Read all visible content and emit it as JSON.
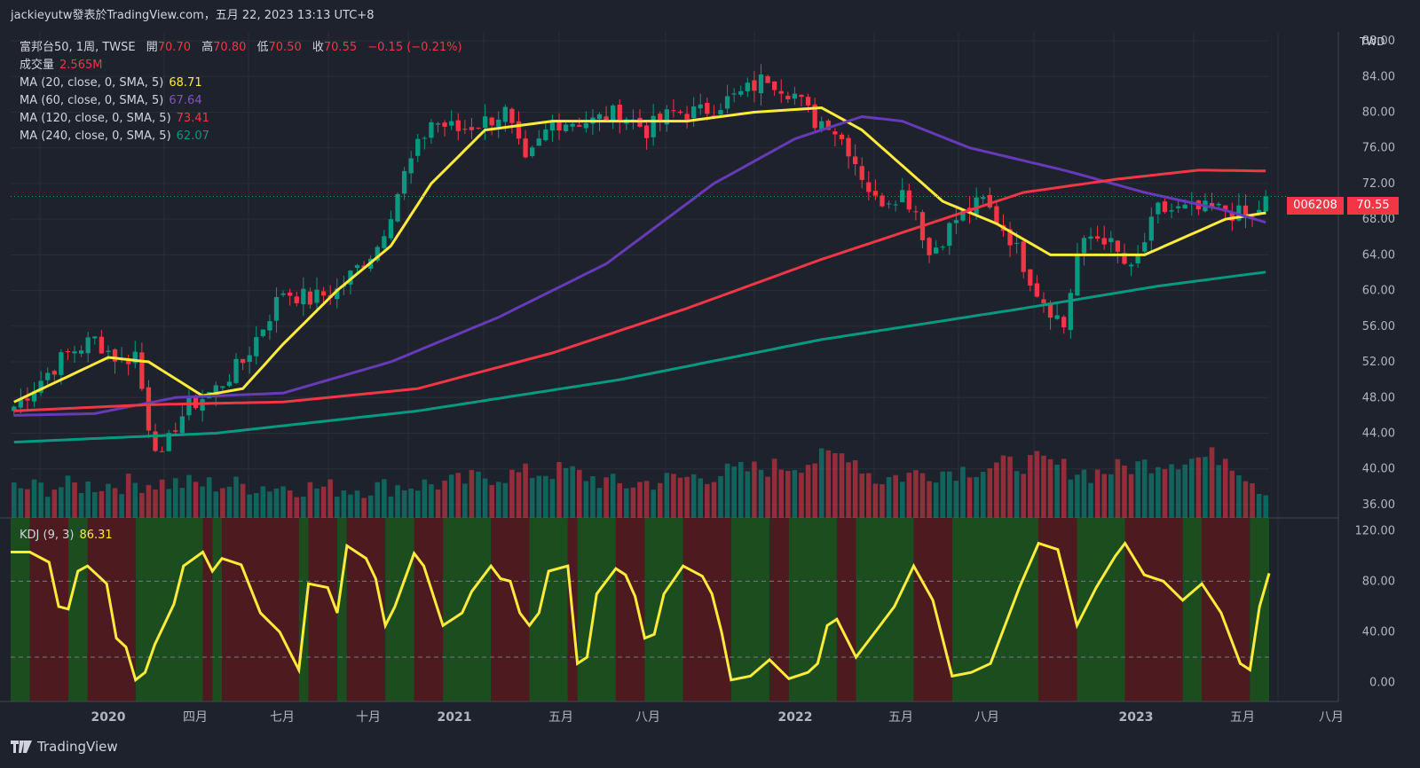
{
  "header": {
    "publish_text": "jackieyutw發表於TradingView.com，五月 22, 2023 13:13 UTC+8"
  },
  "legend": {
    "symbol_line": "富邦台50, 1周, TWSE",
    "ohlc": [
      {
        "label": "開",
        "value": "70.70"
      },
      {
        "label": "高",
        "value": "70.80"
      },
      {
        "label": "低",
        "value": "70.50"
      },
      {
        "label": "收",
        "value": "70.55"
      }
    ],
    "change": "−0.15 (−0.21%)",
    "volume_label": "成交量",
    "volume_value": "2.565M",
    "ma": [
      {
        "label": "MA (20, close, 0, SMA, 5)",
        "value": "68.71",
        "color": "#ffeb3b"
      },
      {
        "label": "MA (60, close, 0, SMA, 5)",
        "value": "67.64",
        "color": "#673ab7"
      },
      {
        "label": "MA (120, close, 0, SMA, 5)",
        "value": "73.41",
        "color": "#f23645"
      },
      {
        "label": "MA (240, close, 0, SMA, 5)",
        "value": "62.07",
        "color": "#089981"
      }
    ],
    "kdj_label": "KDJ (9, 3)",
    "kdj_value": "86.31"
  },
  "axis": {
    "unit": "TWD",
    "ticker_tag": "006208",
    "last_price_tag": "70.55"
  },
  "footer": {
    "brand": "TradingView"
  },
  "colors": {
    "up": "#089981",
    "down": "#f23645",
    "background": "#1e222d",
    "kdj_line": "#ffeb3b",
    "kdj_green_bg": "#1b4d1f",
    "kdj_red_bg": "#4d1a1f"
  },
  "chart_data": {
    "type": "candlestick",
    "price_axis": {
      "range": [
        34.5,
        89
      ],
      "ticks": [
        "36.00",
        "40.00",
        "44.00",
        "48.00",
        "52.00",
        "56.00",
        "60.00",
        "64.00",
        "68.00",
        "72.00",
        "76.00",
        "80.00",
        "84.00",
        "88.00"
      ]
    },
    "time_axis_labels": [
      "2020",
      "四月",
      "七月",
      "十月",
      "2021",
      "五月",
      "八月",
      "2022",
      "五月",
      "八月",
      "2023",
      "五月",
      "八月"
    ],
    "kdj_axis": {
      "range": [
        -15,
        130
      ],
      "ticks": [
        "0.00",
        "40.00",
        "80.00",
        "120.00"
      ],
      "dashed_levels": [
        80,
        20
      ]
    },
    "anchors": [
      [
        0,
        47
      ],
      [
        4,
        50
      ],
      [
        8,
        53
      ],
      [
        12,
        54.5
      ],
      [
        16,
        52
      ],
      [
        18,
        53
      ],
      [
        20,
        45
      ],
      [
        22,
        41
      ],
      [
        24,
        45
      ],
      [
        26,
        47
      ],
      [
        30,
        49
      ],
      [
        34,
        52
      ],
      [
        40,
        60
      ],
      [
        44,
        59
      ],
      [
        48,
        60
      ],
      [
        54,
        65
      ],
      [
        58,
        73
      ],
      [
        62,
        79
      ],
      [
        66,
        78
      ],
      [
        70,
        79
      ],
      [
        73,
        80
      ],
      [
        76,
        74
      ],
      [
        80,
        79
      ],
      [
        86,
        79
      ],
      [
        90,
        80
      ],
      [
        94,
        78
      ],
      [
        98,
        80
      ],
      [
        102,
        80
      ],
      [
        108,
        82
      ],
      [
        112,
        84
      ],
      [
        116,
        82
      ],
      [
        119,
        79
      ],
      [
        121,
        79
      ],
      [
        124,
        76
      ],
      [
        128,
        70
      ],
      [
        132,
        71
      ],
      [
        134,
        69
      ],
      [
        136,
        64
      ],
      [
        140,
        68
      ],
      [
        144,
        70
      ],
      [
        148,
        66
      ],
      [
        152,
        60
      ],
      [
        156,
        56
      ],
      [
        158,
        64
      ],
      [
        160,
        66
      ],
      [
        162,
        66
      ],
      [
        166,
        62
      ],
      [
        170,
        69
      ],
      [
        176,
        69
      ],
      [
        180,
        69
      ],
      [
        184,
        68
      ],
      [
        186,
        70.55
      ]
    ],
    "ma_lines": [
      {
        "name": "MA 20",
        "color": "#ffeb3b",
        "points": [
          [
            0,
            47.5
          ],
          [
            14,
            52.5
          ],
          [
            20,
            52
          ],
          [
            28,
            48.2
          ],
          [
            34,
            49
          ],
          [
            40,
            54
          ],
          [
            48,
            60
          ],
          [
            56,
            65
          ],
          [
            62,
            72
          ],
          [
            70,
            78
          ],
          [
            80,
            79
          ],
          [
            90,
            79
          ],
          [
            100,
            79
          ],
          [
            110,
            80
          ],
          [
            120,
            80.5
          ],
          [
            126,
            78
          ],
          [
            132,
            74
          ],
          [
            138,
            70
          ],
          [
            146,
            67.5
          ],
          [
            154,
            64
          ],
          [
            160,
            64
          ],
          [
            168,
            64
          ],
          [
            174,
            66
          ],
          [
            180,
            68
          ],
          [
            186,
            68.71
          ]
        ]
      },
      {
        "name": "MA 60",
        "color": "#673ab7",
        "points": [
          [
            0,
            46
          ],
          [
            12,
            46.2
          ],
          [
            24,
            48
          ],
          [
            40,
            48.5
          ],
          [
            56,
            52
          ],
          [
            72,
            57
          ],
          [
            88,
            63
          ],
          [
            104,
            72
          ],
          [
            116,
            77
          ],
          [
            126,
            79.5
          ],
          [
            132,
            79
          ],
          [
            142,
            76
          ],
          [
            156,
            73.5
          ],
          [
            168,
            71
          ],
          [
            180,
            69
          ],
          [
            186,
            67.64
          ]
        ]
      },
      {
        "name": "MA 120",
        "color": "#f23645",
        "points": [
          [
            0,
            46.5
          ],
          [
            20,
            47.2
          ],
          [
            40,
            47.5
          ],
          [
            60,
            49
          ],
          [
            80,
            53
          ],
          [
            100,
            58
          ],
          [
            120,
            63.5
          ],
          [
            136,
            67.5
          ],
          [
            150,
            71
          ],
          [
            164,
            72.5
          ],
          [
            176,
            73.5
          ],
          [
            186,
            73.41
          ]
        ]
      },
      {
        "name": "MA 240",
        "color": "#089981",
        "points": [
          [
            0,
            43
          ],
          [
            30,
            44
          ],
          [
            60,
            46.5
          ],
          [
            90,
            50
          ],
          [
            120,
            54.5
          ],
          [
            150,
            58
          ],
          [
            170,
            60.5
          ],
          [
            186,
            62.07
          ]
        ]
      }
    ],
    "volume_peaks": [
      [
        0,
        0.15
      ],
      [
        20,
        0.25
      ],
      [
        50,
        0.15
      ],
      [
        66,
        0.25
      ],
      [
        70,
        0.35
      ],
      [
        82,
        0.45
      ],
      [
        90,
        0.2
      ],
      [
        116,
        0.55
      ],
      [
        124,
        0.75
      ],
      [
        128,
        0.3
      ],
      [
        134,
        0.4
      ],
      [
        144,
        0.5
      ],
      [
        152,
        0.6
      ],
      [
        160,
        0.4
      ],
      [
        170,
        0.6
      ],
      [
        180,
        0.7
      ],
      [
        186,
        0.1
      ]
    ],
    "kdj_points": [
      [
        0,
        103
      ],
      [
        4,
        103
      ],
      [
        8,
        95
      ],
      [
        10,
        60
      ],
      [
        12,
        58
      ],
      [
        14,
        88
      ],
      [
        16,
        92
      ],
      [
        20,
        78
      ],
      [
        22,
        35
      ],
      [
        24,
        28
      ],
      [
        26,
        2
      ],
      [
        28,
        8
      ],
      [
        30,
        30
      ],
      [
        34,
        62
      ],
      [
        36,
        92
      ],
      [
        40,
        103
      ],
      [
        42,
        88
      ],
      [
        44,
        98
      ],
      [
        48,
        93
      ],
      [
        52,
        55
      ],
      [
        56,
        40
      ],
      [
        58,
        25
      ],
      [
        60,
        10
      ],
      [
        62,
        78
      ],
      [
        66,
        75
      ],
      [
        68,
        55
      ],
      [
        70,
        108
      ],
      [
        74,
        98
      ],
      [
        76,
        82
      ],
      [
        78,
        45
      ],
      [
        80,
        60
      ],
      [
        84,
        102
      ],
      [
        86,
        92
      ],
      [
        90,
        45
      ],
      [
        92,
        50
      ],
      [
        94,
        55
      ],
      [
        96,
        72
      ],
      [
        100,
        92
      ],
      [
        102,
        82
      ],
      [
        104,
        80
      ],
      [
        106,
        55
      ],
      [
        108,
        45
      ],
      [
        110,
        55
      ],
      [
        112,
        88
      ],
      [
        116,
        92
      ],
      [
        118,
        15
      ],
      [
        120,
        20
      ],
      [
        122,
        70
      ],
      [
        126,
        90
      ],
      [
        128,
        85
      ],
      [
        130,
        68
      ],
      [
        132,
        35
      ],
      [
        134,
        38
      ],
      [
        136,
        70
      ],
      [
        140,
        92
      ],
      [
        144,
        84
      ],
      [
        146,
        70
      ],
      [
        148,
        40
      ],
      [
        150,
        2
      ],
      [
        154,
        5
      ],
      [
        158,
        18
      ],
      [
        162,
        3
      ],
      [
        166,
        8
      ],
      [
        168,
        15
      ],
      [
        170,
        45
      ],
      [
        172,
        50
      ],
      [
        174,
        35
      ],
      [
        176,
        20
      ],
      [
        180,
        40
      ],
      [
        184,
        60
      ],
      [
        188,
        92
      ],
      [
        192,
        65
      ],
      [
        196,
        5
      ],
      [
        200,
        8
      ],
      [
        204,
        15
      ],
      [
        210,
        75
      ],
      [
        214,
        110
      ],
      [
        218,
        105
      ],
      [
        222,
        45
      ],
      [
        226,
        75
      ],
      [
        230,
        100
      ],
      [
        232,
        110
      ],
      [
        236,
        85
      ],
      [
        240,
        80
      ],
      [
        244,
        65
      ],
      [
        248,
        78
      ],
      [
        252,
        55
      ],
      [
        254,
        35
      ],
      [
        256,
        15
      ],
      [
        258,
        10
      ],
      [
        260,
        60
      ],
      [
        262,
        86.31
      ]
    ]
  }
}
